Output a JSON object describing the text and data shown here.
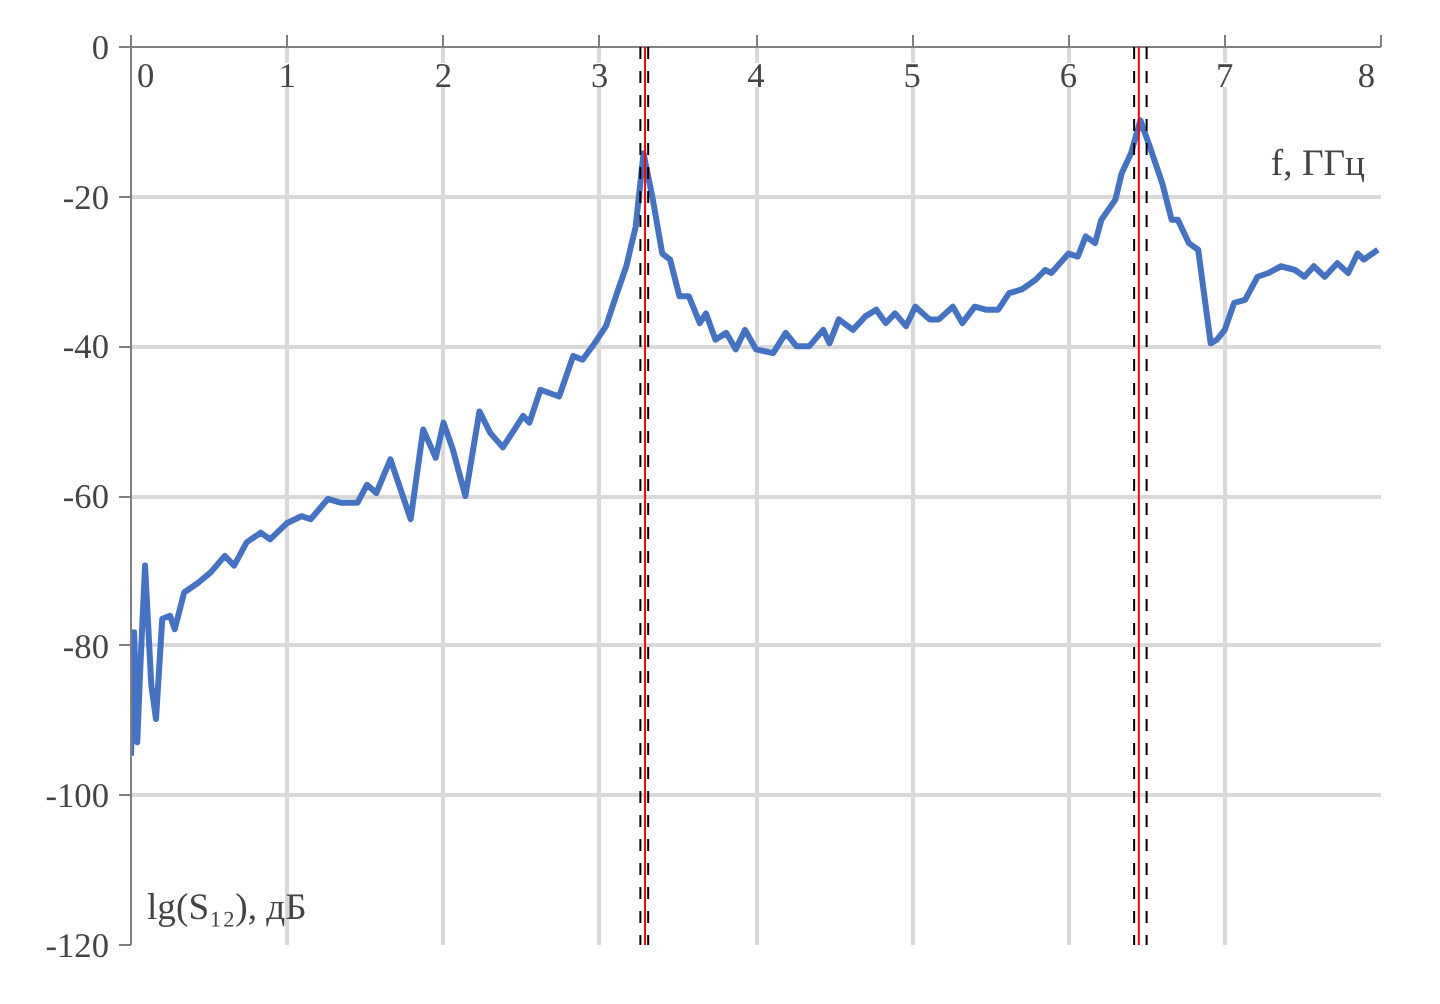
{
  "chart_data": {
    "type": "line",
    "xlabel": "f, ГГц",
    "ylabel": "lg(S₁₂), дБ",
    "xlim": [
      0,
      8
    ],
    "ylim": [
      -120,
      0
    ],
    "xticks": [
      0,
      1,
      2,
      3,
      4,
      5,
      6,
      7,
      8
    ],
    "yticks": [
      0,
      -20,
      -40,
      -60,
      -80,
      -100,
      -120
    ],
    "grid": true,
    "marker": "none",
    "line_style": "solid",
    "series": [
      {
        "color": "#4472c4",
        "x": [
          0,
          0.02,
          0.04,
          0.06,
          0.09,
          0.13,
          0.16,
          0.2,
          0.25,
          0.28,
          0.34,
          0.43,
          0.51,
          0.6,
          0.66,
          0.74,
          0.83,
          0.89,
          1.0,
          1.09,
          1.15,
          1.26,
          1.34,
          1.45,
          1.51,
          1.57,
          1.66,
          1.79,
          1.87,
          1.95,
          2.0,
          2.06,
          2.14,
          2.23,
          2.3,
          2.38,
          2.51,
          2.55,
          2.62,
          2.74,
          2.83,
          2.89,
          2.96,
          3.04,
          3.11,
          3.17,
          3.23,
          3.28,
          3.34,
          3.4,
          3.45,
          3.51,
          3.57,
          3.64,
          3.68,
          3.74,
          3.81,
          3.87,
          3.93,
          4.0,
          4.11,
          4.19,
          4.26,
          4.34,
          4.43,
          4.47,
          4.53,
          4.62,
          4.7,
          4.77,
          4.83,
          4.89,
          4.96,
          5.02,
          5.11,
          5.17,
          5.26,
          5.32,
          5.4,
          5.47,
          5.55,
          5.62,
          5.7,
          5.79,
          5.85,
          5.89,
          6.0,
          6.06,
          6.11,
          6.17,
          6.21,
          6.3,
          6.34,
          6.4,
          6.46,
          6.52,
          6.6,
          6.66,
          6.7,
          6.77,
          6.83,
          6.91,
          6.95,
          7.0,
          7.06,
          7.13,
          7.21,
          7.28,
          7.36,
          7.45,
          7.51,
          7.57,
          7.64,
          7.72,
          7.79,
          7.85,
          7.89,
          7.98
        ],
        "values": [
          -94.7,
          -78.2,
          -92.9,
          -82.7,
          -69.3,
          -85.3,
          -89.8,
          -76.4,
          -76,
          -77.8,
          -72.9,
          -71.6,
          -70.2,
          -68,
          -69.3,
          -66.2,
          -64.9,
          -65.8,
          -63.6,
          -62.7,
          -63.1,
          -60.4,
          -60.9,
          -60.9,
          -58.5,
          -59.6,
          -55.1,
          -63.1,
          -51.1,
          -54.9,
          -50.2,
          -53.8,
          -60,
          -48.7,
          -51.6,
          -53.5,
          -49.3,
          -50.2,
          -45.8,
          -46.7,
          -41.3,
          -41.8,
          -39.8,
          -37.3,
          -32.9,
          -29.3,
          -24,
          -14.2,
          -20.4,
          -27.6,
          -28.4,
          -33.3,
          -33.3,
          -36.9,
          -35.6,
          -39.1,
          -38.2,
          -40.4,
          -37.8,
          -40.4,
          -40.9,
          -38.2,
          -40,
          -40,
          -37.8,
          -39.6,
          -36.4,
          -37.8,
          -36,
          -35.1,
          -36.9,
          -35.6,
          -37.3,
          -34.7,
          -36.4,
          -36.4,
          -34.7,
          -36.9,
          -34.7,
          -35.1,
          -35.1,
          -32.9,
          -32.4,
          -31.1,
          -29.8,
          -30.2,
          -27.6,
          -28,
          -25.3,
          -26.2,
          -23.1,
          -20.4,
          -16.9,
          -14.2,
          -9.8,
          -13.3,
          -18.2,
          -23.1,
          -23.1,
          -26.2,
          -27.1,
          -39.6,
          -39.1,
          -37.8,
          -34.2,
          -33.8,
          -30.7,
          -30.2,
          -29.3,
          -29.8,
          -30.7,
          -29.3,
          -30.7,
          -28.9,
          -30.2,
          -27.6,
          -28.4,
          -27.1
        ]
      }
    ],
    "ref_lines": [
      {
        "axis": "x",
        "value": 3.29,
        "color": "#ff0000",
        "line_style": "solid"
      },
      {
        "axis": "x",
        "value": 3.26,
        "color": "#000000",
        "line_style": "dashed"
      },
      {
        "axis": "x",
        "value": 3.31,
        "color": "#000000",
        "line_style": "dashed"
      },
      {
        "axis": "x",
        "value": 6.45,
        "color": "#ff0000",
        "line_style": "solid"
      },
      {
        "axis": "x",
        "value": 6.42,
        "color": "#000000",
        "line_style": "dashed"
      },
      {
        "axis": "x",
        "value": 6.5,
        "color": "#000000",
        "line_style": "dashed"
      }
    ]
  }
}
